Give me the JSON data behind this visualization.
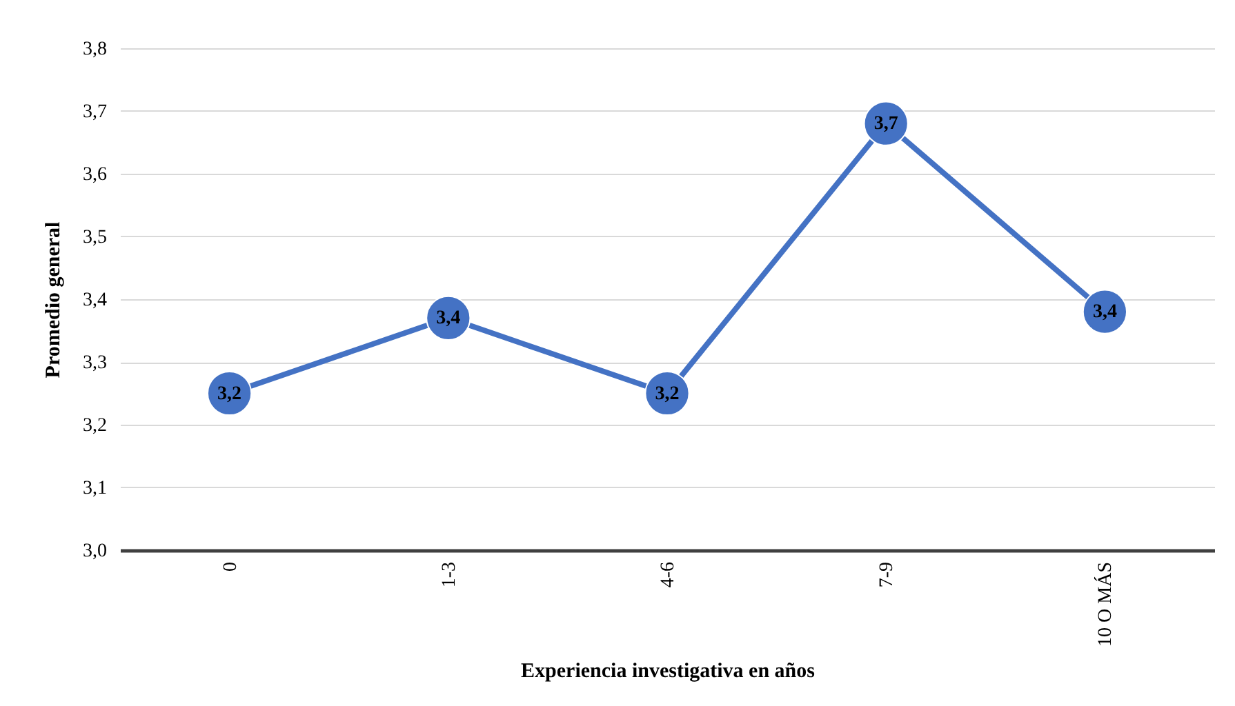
{
  "chart_data": {
    "type": "line",
    "xlabel": "Experiencia investigativa en años",
    "ylabel": "Promedio general",
    "categories": [
      "0",
      "1-3",
      "4-6",
      "7-9",
      "10 O MÁS"
    ],
    "series": [
      {
        "color": "#4472c4",
        "values": [
          3.25,
          3.37,
          3.25,
          3.68,
          3.38
        ],
        "value_labels": [
          "3,2",
          "3,4",
          "3,2",
          "3,7",
          "3,4"
        ]
      }
    ],
    "ylim": [
      3.0,
      3.8
    ],
    "yticks": [
      {
        "value": 3.0,
        "label": "3,0"
      },
      {
        "value": 3.1,
        "label": "3,1"
      },
      {
        "value": 3.2,
        "label": "3,2"
      },
      {
        "value": 3.3,
        "label": "3,3"
      },
      {
        "value": 3.4,
        "label": "3,4"
      },
      {
        "value": 3.5,
        "label": "3,5"
      },
      {
        "value": 3.6,
        "label": "3,6"
      },
      {
        "value": 3.7,
        "label": "3,7"
      },
      {
        "value": 3.8,
        "label": "3,8"
      }
    ],
    "grid": "y",
    "marker": "circle",
    "line_style": "solid"
  }
}
